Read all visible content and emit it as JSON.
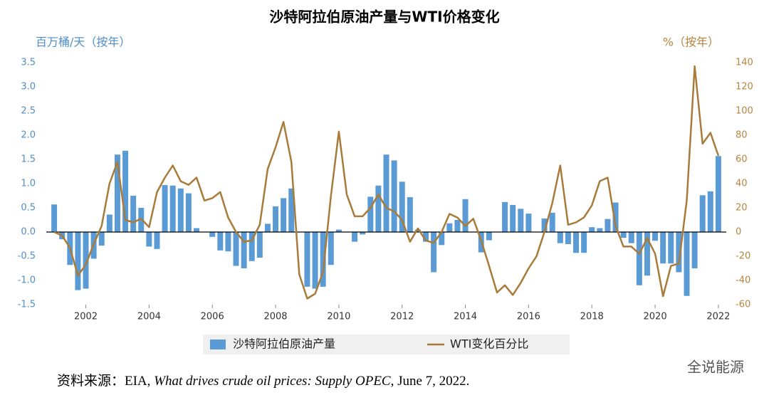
{
  "chart_data": {
    "type": "bar",
    "title": "沙特阿拉伯原油产量与WTI价格变化",
    "y_label": "百万桶/天（按年）",
    "y2_label": "%（按年）",
    "x": [
      2001,
      2001.25,
      2001.5,
      2001.75,
      2002,
      2002.25,
      2002.5,
      2002.75,
      2003,
      2003.25,
      2003.5,
      2003.75,
      2004,
      2004.25,
      2004.5,
      2004.75,
      2005,
      2005.25,
      2005.5,
      2005.75,
      2006,
      2006.25,
      2006.5,
      2006.75,
      2007,
      2007.25,
      2007.5,
      2007.75,
      2008,
      2008.25,
      2008.5,
      2008.75,
      2009,
      2009.25,
      2009.5,
      2009.75,
      2010,
      2010.25,
      2010.5,
      2010.75,
      2011,
      2011.25,
      2011.5,
      2011.75,
      2012,
      2012.25,
      2012.5,
      2012.75,
      2013,
      2013.25,
      2013.5,
      2013.75,
      2014,
      2014.25,
      2014.5,
      2014.75,
      2015,
      2015.25,
      2015.5,
      2015.75,
      2016,
      2016.25,
      2016.5,
      2016.75,
      2017,
      2017.25,
      2017.5,
      2017.75,
      2018,
      2018.25,
      2018.5,
      2018.75,
      2019,
      2019.25,
      2019.5,
      2019.75,
      2020,
      2020.25,
      2020.5,
      2020.75,
      2021,
      2021.25,
      2021.5,
      2021.75,
      2022
    ],
    "xlim": [
      2000.75,
      2022.25
    ],
    "xticks": [
      2002,
      2004,
      2006,
      2008,
      2010,
      2012,
      2014,
      2016,
      2018,
      2020,
      2022
    ],
    "ylim": [
      -1.5,
      3.5
    ],
    "yticks": [
      -1.5,
      {
        "value": -1,
        "label": "-1.0"
      },
      -0.5,
      {
        "value": 0,
        "label": "0.0"
      },
      0.5,
      {
        "value": 1,
        "label": "1.0"
      },
      1.5,
      {
        "value": 2,
        "label": "2.0"
      },
      2.5,
      {
        "value": 3,
        "label": "3.0"
      },
      3.5
    ],
    "y2lim": [
      -60,
      140
    ],
    "y2ticks": [
      -60,
      -40,
      -20,
      0,
      20,
      40,
      60,
      80,
      100,
      120,
      140
    ],
    "legend": "bottom",
    "series": [
      {
        "name": "沙特阿拉伯原油产量",
        "type": "bar",
        "color": "#5b9bd5",
        "values": [
          0.57,
          -0.15,
          -0.68,
          -1.2,
          -1.17,
          -0.55,
          -0.28,
          0.36,
          1.6,
          1.68,
          0.75,
          0.5,
          -0.3,
          -0.35,
          0.97,
          0.96,
          0.9,
          0.8,
          0.08,
          0,
          -0.1,
          -0.38,
          -0.4,
          -0.7,
          -0.75,
          -0.6,
          -0.53,
          0.17,
          0.53,
          0.7,
          0.9,
          0,
          -1.13,
          -1.17,
          -1.13,
          -0.68,
          0.05,
          0,
          -0.2,
          -0.05,
          0.73,
          0.96,
          1.6,
          1.48,
          1.04,
          0.72,
          0.05,
          -0.2,
          -0.83,
          -0.27,
          0.18,
          0.25,
          0.68,
          0,
          -0.42,
          -0.17,
          0,
          0.62,
          0.56,
          0.48,
          0.38,
          0,
          0.28,
          0.4,
          -0.23,
          -0.25,
          -0.43,
          -0.43,
          0.1,
          0.08,
          0.27,
          0.61,
          -0.12,
          -0.23,
          -1.1,
          -0.9,
          -0.18,
          -0.65,
          -0.65,
          -0.83,
          -1.32,
          -0.75,
          0.76,
          0.84,
          1.57
        ]
      },
      {
        "name": "WTI变化百分比",
        "type": "line",
        "axis": "y2",
        "color": "#a87b3a",
        "values": [
          0,
          -3,
          -13,
          -36,
          -27,
          -10,
          5,
          40,
          58,
          10,
          8,
          11,
          4,
          33,
          45,
          55,
          42,
          39,
          45,
          26,
          28,
          33,
          12,
          0,
          -8,
          -7,
          6,
          52,
          70,
          91,
          58,
          -35,
          -55,
          -51,
          -33,
          30,
          83,
          31,
          13,
          13,
          20,
          31,
          20,
          17,
          10,
          -8,
          3,
          -7,
          -9,
          0,
          15,
          12,
          5,
          11,
          -7,
          -28,
          -50,
          -44,
          -52,
          -42,
          -30,
          -20,
          0,
          24,
          55,
          6,
          8,
          12,
          22,
          42,
          45,
          5,
          -12,
          -12,
          -18,
          -5,
          -18,
          -53,
          -28,
          -26,
          26,
          137,
          73,
          82,
          63
        ]
      }
    ],
    "source": [
      "资料来源：EIA, ",
      "What drives crude oil prices: Supply OPEC",
      ", June 7, 2022."
    ],
    "watermark": "全说能源"
  }
}
